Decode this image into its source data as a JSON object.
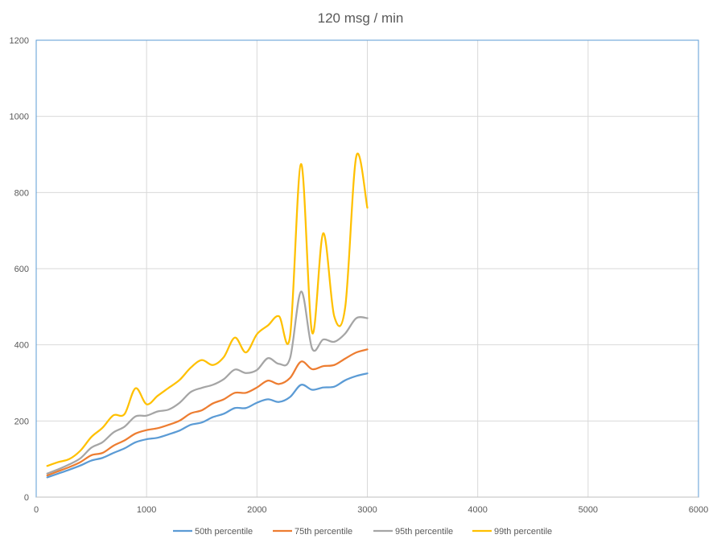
{
  "chart_data": {
    "type": "line",
    "title": "120 msg / min",
    "xlabel": "",
    "ylabel": "",
    "xlim": [
      0,
      6000
    ],
    "ylim": [
      0,
      1200
    ],
    "x_ticks": [
      "0",
      "1000",
      "2000",
      "3000",
      "4000",
      "5000",
      "6000"
    ],
    "y_ticks": [
      "0",
      "200",
      "400",
      "600",
      "800",
      "1000",
      "1200"
    ],
    "grid": true,
    "legend_position": "bottom",
    "x": [
      100,
      200,
      300,
      400,
      500,
      600,
      700,
      800,
      900,
      1000,
      1100,
      1200,
      1300,
      1400,
      1500,
      1600,
      1700,
      1800,
      1900,
      2000,
      2100,
      2200,
      2300,
      2400,
      2500,
      2600,
      2700,
      2800,
      2900,
      3000
    ],
    "series": [
      {
        "name": "50th percentile",
        "color": "#5B9BD5",
        "values": [
          52,
          62,
          72,
          83,
          96,
          103,
          116,
          128,
          144,
          152,
          156,
          165,
          175,
          190,
          196,
          210,
          219,
          234,
          234,
          248,
          257,
          250,
          263,
          295,
          282,
          288,
          290,
          307,
          318,
          325
        ]
      },
      {
        "name": "75th percentile",
        "color": "#ED7D31",
        "values": [
          57,
          68,
          79,
          92,
          110,
          116,
          135,
          149,
          167,
          176,
          181,
          190,
          201,
          220,
          228,
          246,
          257,
          274,
          274,
          288,
          306,
          297,
          313,
          356,
          336,
          344,
          347,
          364,
          380,
          388
        ]
      },
      {
        "name": "95th percentile",
        "color": "#A5A5A5",
        "values": [
          62,
          73,
          86,
          102,
          130,
          144,
          170,
          185,
          212,
          214,
          225,
          230,
          248,
          276,
          287,
          295,
          310,
          335,
          326,
          334,
          365,
          350,
          365,
          540,
          390,
          414,
          408,
          430,
          470,
          470
        ]
      },
      {
        "name": "99th percentile",
        "color": "#FFC000",
        "values": [
          82,
          92,
          100,
          122,
          158,
          182,
          215,
          218,
          286,
          244,
          266,
          287,
          308,
          340,
          360,
          347,
          368,
          419,
          380,
          428,
          451,
          475,
          423,
          875,
          432,
          693,
          475,
          500,
          895,
          760
        ]
      }
    ]
  }
}
